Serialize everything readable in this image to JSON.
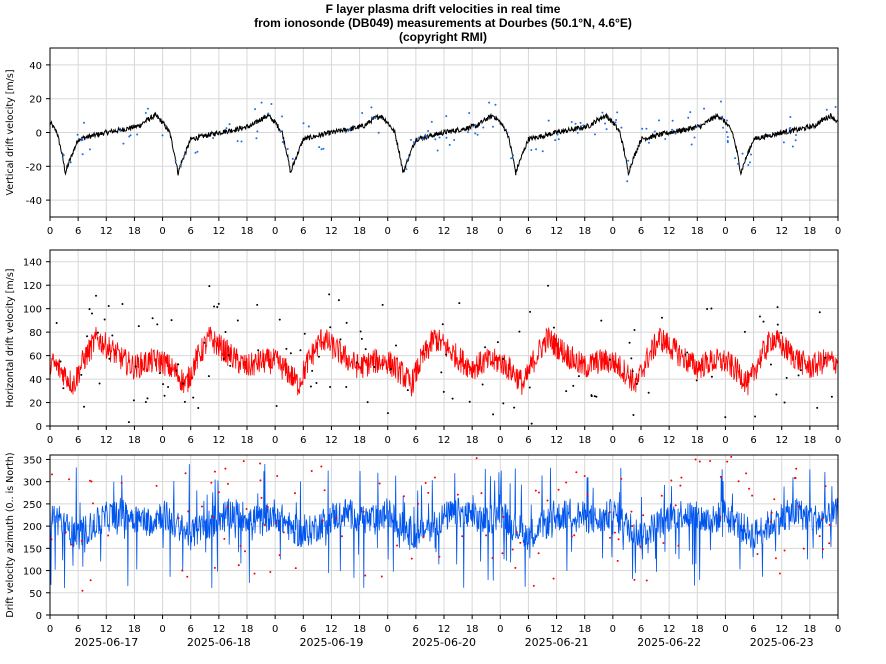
{
  "title_lines": [
    "F layer plasma drift velocities in real time",
    "from ionosonde (DB049) measurements at Dourbes (50.1°N, 4.6°E)",
    "(copyright RMI)"
  ],
  "colors": {
    "panel1_line": "#000000",
    "panel1_points": "#1f6ee8",
    "panel2_line": "#ff0000",
    "panel2_points": "#000000",
    "panel3_line": "#0055ee",
    "panel3_points": "#ff0000",
    "grid": "#d8d8d8"
  },
  "chart_data": [
    {
      "type": "line",
      "ylabel": "Vertical drift velocity [m/s]",
      "ylim": [
        -50,
        50
      ],
      "yticks": [
        -40,
        -20,
        0,
        20,
        40
      ],
      "x_hours": [
        0,
        168
      ],
      "xtick_hours": [
        0,
        6,
        12,
        18
      ],
      "xtick_labels": [
        "0",
        "6",
        "12",
        "18",
        "0",
        "6",
        "12",
        "18",
        "0",
        "6",
        "12",
        "18",
        "0",
        "6",
        "12",
        "18",
        "0",
        "6",
        "12",
        "18",
        "0",
        "6",
        "12",
        "18",
        "0",
        "6",
        "12",
        "18",
        "0"
      ],
      "daily_pattern_hour": [
        0,
        1.5,
        2.5,
        3.3,
        4.0,
        6,
        9,
        12,
        16,
        19,
        21,
        22.5,
        24
      ],
      "daily_pattern_value": [
        6,
        0,
        -12,
        -24,
        -18,
        -4,
        -2,
        0,
        2,
        4,
        8,
        10,
        6
      ],
      "scatter_note": "",
      "grid": true
    },
    {
      "type": "line",
      "ylabel": "Horizontal drift velocity [m/s]",
      "ylim": [
        0,
        150
      ],
      "yticks": [
        0,
        20,
        40,
        60,
        80,
        100,
        120,
        140
      ],
      "x_hours": [
        0,
        168
      ],
      "xtick_hours": [
        0,
        6,
        12,
        18
      ],
      "xtick_labels": [
        "0",
        "6",
        "12",
        "18",
        "0",
        "6",
        "12",
        "18",
        "0",
        "6",
        "12",
        "18",
        "0",
        "6",
        "12",
        "18",
        "0",
        "6",
        "12",
        "18",
        "0",
        "6",
        "12",
        "18",
        "0",
        "6",
        "12",
        "18",
        "0"
      ],
      "daily_pattern_hour": [
        0,
        3,
        5,
        7,
        10,
        13,
        16,
        18,
        21,
        24
      ],
      "daily_pattern_value": [
        55,
        45,
        35,
        55,
        75,
        65,
        55,
        50,
        55,
        55
      ],
      "grid": true
    },
    {
      "type": "line",
      "ylabel": "Drift velocity azimuth (0.. is North)",
      "ylim": [
        0,
        360
      ],
      "yticks": [
        0,
        50,
        100,
        150,
        200,
        250,
        300,
        350
      ],
      "x_hours": [
        0,
        168
      ],
      "xtick_hours": [
        0,
        6,
        12,
        18
      ],
      "xtick_labels": [
        "0",
        "6",
        "12",
        "18",
        "0",
        "6",
        "12",
        "18",
        "0",
        "6",
        "12",
        "18",
        "0",
        "6",
        "12",
        "18",
        "0",
        "6",
        "12",
        "18",
        "0",
        "6",
        "12",
        "18",
        "0",
        "6",
        "12",
        "18",
        "0"
      ],
      "date_labels": [
        "2025-06-17",
        "2025-06-18",
        "2025-06-19",
        "2025-06-20",
        "2025-06-21",
        "2025-06-22",
        "2025-06-23"
      ],
      "daily_pattern_hour": [
        0,
        3,
        6,
        9,
        12,
        15,
        18,
        21,
        24
      ],
      "daily_pattern_value": [
        230,
        200,
        180,
        200,
        220,
        230,
        220,
        210,
        230
      ],
      "grid": true
    }
  ]
}
